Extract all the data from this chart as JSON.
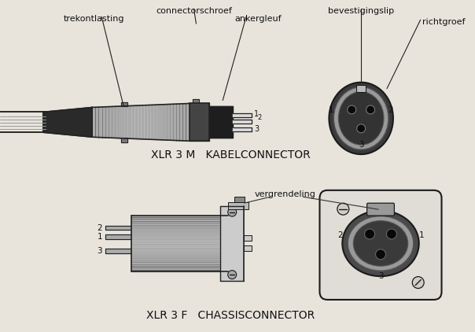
{
  "bg_color": "#e8e4dc",
  "title_top": "XLR 3 M   KABELCONNECTOR",
  "title_bottom": "XLR 3 F   CHASSISCONNECTOR",
  "labels_top": [
    "connectorschroef",
    "trekontlasting",
    "ankergleuf",
    "bevestigingslip",
    "richtgroef"
  ],
  "labels_bottom": [
    "vergrendeling"
  ],
  "dark_color": "#1a1a1a",
  "mid_color": "#888888",
  "light_color": "#cccccc",
  "body_color": "#b0b0b0",
  "title_fontsize": 10,
  "label_fontsize": 8.0
}
